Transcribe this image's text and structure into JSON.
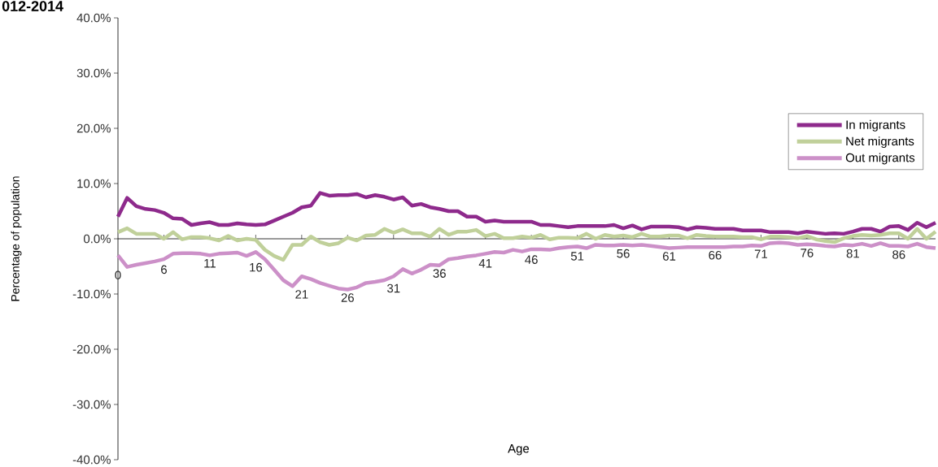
{
  "chart_data": {
    "type": "line",
    "title": "012-2014",
    "xlabel": "Age",
    "ylabel": "Percentage of population",
    "categories": [
      "0",
      null,
      null,
      null,
      null,
      "6",
      null,
      null,
      null,
      null,
      "11",
      null,
      null,
      null,
      null,
      "16",
      null,
      null,
      null,
      null,
      "21",
      null,
      null,
      null,
      null,
      "26",
      null,
      null,
      null,
      null,
      "31",
      null,
      null,
      null,
      null,
      "36",
      null,
      null,
      null,
      null,
      "41",
      null,
      null,
      null,
      null,
      "46",
      null,
      null,
      null,
      null,
      "51",
      null,
      null,
      null,
      null,
      "56",
      null,
      null,
      null,
      null,
      "61",
      null,
      null,
      null,
      null,
      "66",
      null,
      null,
      null,
      null,
      "71",
      null,
      null,
      null,
      null,
      "76",
      null,
      null,
      null,
      null,
      "81",
      null,
      null,
      null,
      null,
      "86",
      null,
      null,
      null,
      null
    ],
    "series": [
      {
        "name": "In migrants",
        "color": "#8e2a8c",
        "values": [
          4.0,
          7.4,
          5.9,
          5.4,
          5.2,
          4.7,
          3.7,
          3.6,
          2.5,
          2.8,
          3.0,
          2.5,
          2.5,
          2.8,
          2.6,
          2.5,
          2.6,
          3.3,
          4.0,
          4.7,
          5.7,
          6.0,
          8.3,
          7.8,
          7.9,
          7.9,
          8.1,
          7.5,
          7.9,
          7.6,
          7.1,
          7.5,
          6.0,
          6.3,
          5.7,
          5.4,
          5.0,
          5.0,
          4.0,
          4.0,
          3.1,
          3.3,
          3.1,
          3.1,
          3.1,
          3.1,
          2.5,
          2.5,
          2.3,
          2.1,
          2.3,
          2.3,
          2.3,
          2.3,
          2.5,
          1.9,
          2.4,
          1.7,
          2.2,
          2.2,
          2.2,
          2.1,
          1.7,
          2.1,
          2.0,
          1.8,
          1.8,
          1.8,
          1.5,
          1.5,
          1.5,
          1.2,
          1.2,
          1.2,
          1.0,
          1.3,
          1.1,
          0.9,
          1.0,
          0.9,
          1.3,
          1.8,
          1.8,
          1.3,
          2.2,
          2.3,
          1.6,
          2.9,
          2.1,
          2.9
        ]
      },
      {
        "name": "Net migrants",
        "color": "#c0d09a",
        "values": [
          1.2,
          1.9,
          0.9,
          0.9,
          0.9,
          0,
          1.2,
          -0.1,
          0.3,
          0.3,
          0.1,
          -0.3,
          0.5,
          -0.3,
          0,
          -0.2,
          -2.0,
          -3.1,
          -3.8,
          -1.1,
          -1.1,
          0.4,
          -0.6,
          -1.1,
          -0.8,
          0.2,
          -0.3,
          0.6,
          0.7,
          1.8,
          1.1,
          1.7,
          1.0,
          1.0,
          0.4,
          1.8,
          0.7,
          1.3,
          1.3,
          1.6,
          0.5,
          0.9,
          0.1,
          0.1,
          0.4,
          0.2,
          0.7,
          -0.1,
          0.2,
          0.2,
          0.1,
          0.9,
          0,
          0.7,
          0.4,
          0.6,
          0.3,
          0.9,
          0.4,
          0.4,
          0.6,
          0.6,
          0.1,
          0.7,
          0.5,
          0.4,
          0.4,
          0.4,
          0.3,
          0.3,
          -0.1,
          0.4,
          0.4,
          0.3,
          0.1,
          0.5,
          -0.1,
          -0.4,
          -0.6,
          0.1,
          0.5,
          0.7,
          0.6,
          0.7,
          1.0,
          1.0,
          0,
          1.8,
          0,
          1.3
        ]
      },
      {
        "name": "Out migrants",
        "color": "#cc90c8",
        "values": [
          -3.0,
          -5.1,
          -4.7,
          -4.4,
          -4.1,
          -3.7,
          -2.7,
          -2.6,
          -2.6,
          -2.7,
          -3.0,
          -2.7,
          -2.6,
          -2.5,
          -3.1,
          -2.4,
          -3.7,
          -5.6,
          -7.5,
          -8.6,
          -6.8,
          -7.3,
          -8.0,
          -8.5,
          -9.0,
          -9.2,
          -8.8,
          -8.0,
          -7.8,
          -7.5,
          -6.8,
          -5.5,
          -6.3,
          -5.6,
          -4.7,
          -4.8,
          -3.7,
          -3.5,
          -3.2,
          -3.0,
          -2.7,
          -2.4,
          -2.5,
          -2.0,
          -2.3,
          -1.9,
          -1.9,
          -2.0,
          -1.7,
          -1.5,
          -1.4,
          -1.7,
          -1.1,
          -1.2,
          -1.2,
          -1.1,
          -1.2,
          -1.1,
          -1.3,
          -1.5,
          -1.7,
          -1.6,
          -1.5,
          -1.5,
          -1.5,
          -1.5,
          -1.5,
          -1.4,
          -1.4,
          -1.2,
          -1.3,
          -0.8,
          -0.7,
          -0.8,
          -1.1,
          -1.0,
          -1.1,
          -1.3,
          -1.4,
          -1.1,
          -1.2,
          -0.9,
          -1.3,
          -0.8,
          -1.3,
          -1.3,
          -1.4,
          -0.9,
          -1.5,
          -1.7
        ]
      }
    ],
    "ylim": [
      -40,
      40
    ],
    "yticks": [
      {
        "value": -40,
        "label": "-40.0%"
      },
      {
        "value": -30,
        "label": "-30.0%"
      },
      {
        "value": -20,
        "label": "-20.0%"
      },
      {
        "value": -10,
        "label": "-10.0%"
      },
      {
        "value": 0,
        "label": "0.0%"
      },
      {
        "value": 10,
        "label": "10.0%"
      },
      {
        "value": 20,
        "label": "20.0%"
      },
      {
        "value": 30,
        "label": "30.0%"
      },
      {
        "value": 40,
        "label": "40.0%"
      }
    ],
    "legend": "right",
    "grid": false,
    "marker": "none",
    "line_style": "solid"
  }
}
